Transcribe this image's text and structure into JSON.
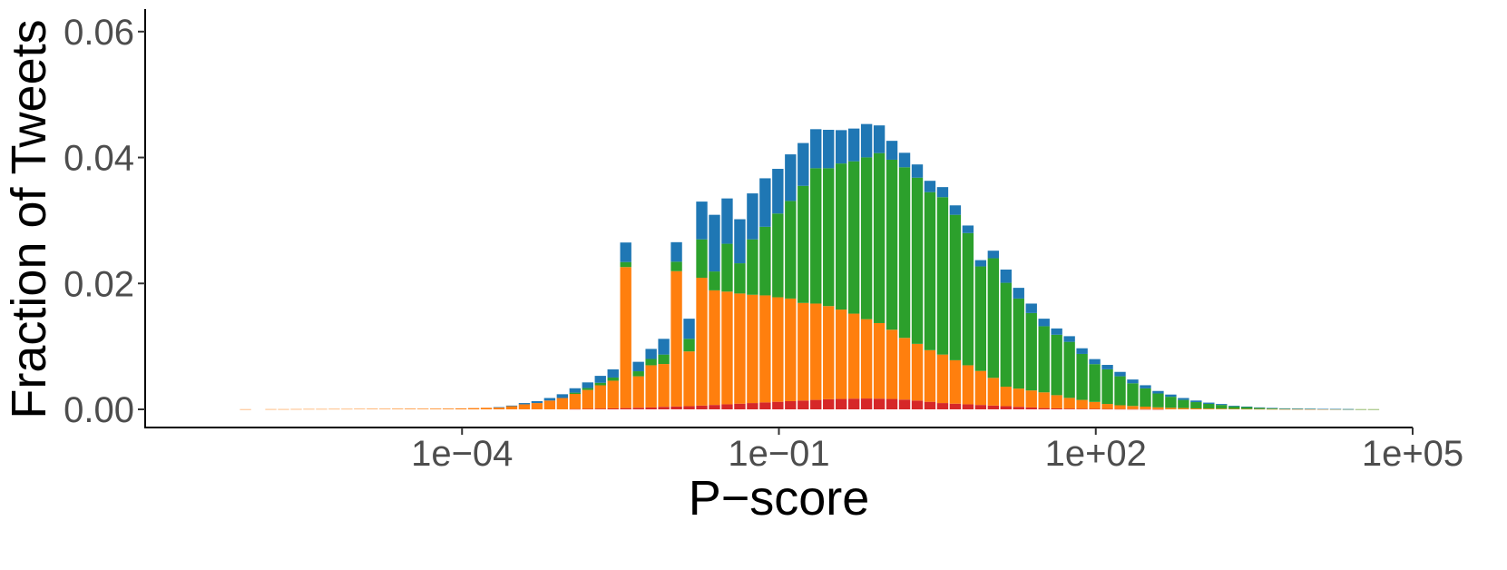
{
  "chart_data": {
    "type": "bar",
    "stacked": true,
    "xlabel": "P−score",
    "ylabel": "Fraction of Tweets",
    "x_scale": "log10",
    "xlim": [
      1e-07,
      100000.0
    ],
    "ylim": [
      0,
      0.063
    ],
    "x_ticks": [
      {
        "value": 0.0001,
        "label": "1e−04"
      },
      {
        "value": 0.1,
        "label": "1e−01"
      },
      {
        "value": 100,
        "label": "1e+02"
      },
      {
        "value": 100000,
        "label": "1e+05"
      }
    ],
    "y_ticks": [
      {
        "value": 0,
        "label": "0.00"
      },
      {
        "value": 0.02,
        "label": "0.02"
      },
      {
        "value": 0.04,
        "label": "0.04"
      },
      {
        "value": 0.06,
        "label": "0.06"
      }
    ],
    "grid": false,
    "legend": "none",
    "bin_edges_log10": [
      -6.11,
      -5.99,
      -5.87,
      -5.75,
      -5.63,
      -5.51,
      -5.39,
      -5.27,
      -5.15,
      -5.03,
      -4.91,
      -4.79,
      -4.67,
      -4.55,
      -4.43,
      -4.31,
      -4.19,
      -4.07,
      -3.95,
      -3.83,
      -3.71,
      -3.59,
      -3.47,
      -3.35,
      -3.23,
      -3.11,
      -2.99,
      -2.87,
      -2.75,
      -2.63,
      -2.51,
      -2.39,
      -2.27,
      -2.15,
      -2.03,
      -1.91,
      -1.79,
      -1.67,
      -1.55,
      -1.43,
      -1.31,
      -1.19,
      -1.07,
      -0.95,
      -0.83,
      -0.71,
      -0.59,
      -0.47,
      -0.35,
      -0.23,
      -0.11,
      0.01,
      0.13,
      0.25,
      0.37,
      0.49,
      0.61,
      0.73,
      0.85,
      0.97,
      1.09,
      1.21,
      1.33,
      1.45,
      1.57,
      1.69,
      1.81,
      1.93,
      2.05,
      2.17,
      2.29,
      2.41,
      2.53,
      2.65,
      2.77,
      2.89,
      3.01,
      3.13,
      3.25,
      3.37,
      3.49,
      3.61,
      3.73,
      3.85,
      3.97,
      4.09,
      4.21,
      4.33,
      4.45,
      4.57,
      4.69
    ],
    "series": [
      {
        "color": "#d62728",
        "values": [
          0,
          0,
          0,
          0,
          0,
          0,
          0,
          0,
          0,
          0,
          0,
          0,
          0,
          0,
          0,
          0,
          0,
          0,
          0,
          0,
          0,
          0,
          0,
          0,
          0,
          0,
          5e-05,
          8e-05,
          0.00012,
          0.00015,
          0.0002,
          0.00025,
          0.0003,
          0.0004,
          0.00045,
          0.0005,
          0.0006,
          0.0007,
          0.0008,
          0.0009,
          0.001,
          0.0011,
          0.0012,
          0.0013,
          0.0014,
          0.0015,
          0.0016,
          0.00165,
          0.0017,
          0.00172,
          0.0017,
          0.00165,
          0.00155,
          0.0014,
          0.0012,
          0.001,
          0.0009,
          0.0008,
          0.0007,
          0.0006,
          0.0005,
          0.0004,
          0.0003,
          0.0002,
          0.00015,
          0.00012,
          0.0001,
          8e-05,
          6e-05,
          5e-05,
          4e-05,
          3e-05,
          2e-05,
          0,
          0,
          0,
          0,
          0,
          0,
          0,
          0,
          0,
          0,
          0,
          0,
          0,
          0,
          0,
          0,
          0
        ]
      },
      {
        "color": "#ff7f0e",
        "values": [
          2e-05,
          0,
          3e-05,
          3e-05,
          4e-05,
          5e-05,
          5e-05,
          6e-05,
          6e-05,
          7e-05,
          8e-05,
          8e-05,
          9e-05,
          0.0001,
          0.0001,
          0.00011,
          0.00012,
          0.00015,
          0.0002,
          0.00025,
          0.0003,
          0.0005,
          0.0008,
          0.001,
          0.0014,
          0.0018,
          0.0024,
          0.003,
          0.0037,
          0.0044,
          0.0224,
          0.005,
          0.0067,
          0.0068,
          0.0215,
          0.0087,
          0.0203,
          0.0182,
          0.0179,
          0.0175,
          0.0172,
          0.017,
          0.0166,
          0.0163,
          0.0155,
          0.0153,
          0.0148,
          0.0142,
          0.0135,
          0.0126,
          0.012,
          0.011,
          0.0098,
          0.009,
          0.0082,
          0.0077,
          0.0069,
          0.0062,
          0.0054,
          0.0044,
          0.0031,
          0.0029,
          0.0027,
          0.0025,
          0.0021,
          0.0017,
          0.0014,
          0.0011,
          0.0008,
          0.0006,
          0.0005,
          0.0004,
          0.0003,
          0.00025,
          0.0002,
          0.00015,
          0.00012,
          0.0001,
          8e-05,
          6e-05,
          5e-05,
          4e-05,
          3e-05,
          3e-05,
          2e-05,
          2e-05,
          2e-05,
          1e-05,
          1e-05,
          1e-05
        ]
      },
      {
        "color": "#2ca02c",
        "values": [
          0,
          0,
          0,
          0,
          0,
          0,
          0,
          0,
          0,
          0,
          0,
          0,
          0,
          0,
          0,
          0,
          0,
          0,
          0,
          0,
          0,
          0,
          0,
          0,
          0,
          0,
          0.0002,
          0.0003,
          0.0004,
          0.0005,
          0.0008,
          0.0008,
          0.001,
          0.0015,
          0.0015,
          0.002,
          0.0061,
          0.003,
          0.0076,
          0.0048,
          0.0088,
          0.0109,
          0.0133,
          0.0155,
          0.0186,
          0.0215,
          0.0219,
          0.0232,
          0.0242,
          0.0257,
          0.027,
          0.027,
          0.0271,
          0.0264,
          0.0251,
          0.025,
          0.0231,
          0.021,
          0.0166,
          0.019,
          0.0165,
          0.0143,
          0.0123,
          0.0105,
          0.0096,
          0.0089,
          0.0073,
          0.006,
          0.0055,
          0.0046,
          0.0036,
          0.0029,
          0.0022,
          0.00175,
          0.0013,
          0.001,
          0.00075,
          0.0006,
          0.0004,
          0.0003,
          0.0002,
          0.00015,
          0.0001,
          8e-05,
          6e-05,
          4e-05,
          3e-05,
          2e-05,
          1e-05,
          1e-05
        ]
      },
      {
        "color": "#1f77b4",
        "values": [
          0,
          0,
          0,
          0,
          0,
          0,
          0,
          0,
          0,
          0,
          0,
          0,
          0,
          0,
          0,
          0,
          0,
          0,
          0,
          0,
          5e-05,
          0.0001,
          0.0002,
          0.0003,
          0.0004,
          0.0006,
          0.0007,
          0.0009,
          0.0011,
          0.0013,
          0.0031,
          0.0015,
          0.0016,
          0.0025,
          0.0031,
          0.0032,
          0.006,
          0.009,
          0.0072,
          0.007,
          0.0073,
          0.0077,
          0.0071,
          0.0074,
          0.0068,
          0.0062,
          0.0061,
          0.0053,
          0.0052,
          0.0053,
          0.0044,
          0.003,
          0.0023,
          0.0021,
          0.0018,
          0.0016,
          0.0015,
          0.0012,
          0.001,
          0.0012,
          0.0021,
          0.0017,
          0.0015,
          0.0012,
          0.001,
          0.0009,
          0.0009,
          0.0008,
          0.0007,
          0.0007,
          0.0006,
          0.0005,
          0.0004,
          0.00035,
          0.0003,
          0.00025,
          0.0002,
          0.00015,
          0.0001,
          8e-05,
          6e-05,
          4e-05,
          3e-05,
          2e-05,
          2e-05,
          1e-05,
          1e-05,
          1e-05,
          0,
          0
        ]
      }
    ]
  }
}
